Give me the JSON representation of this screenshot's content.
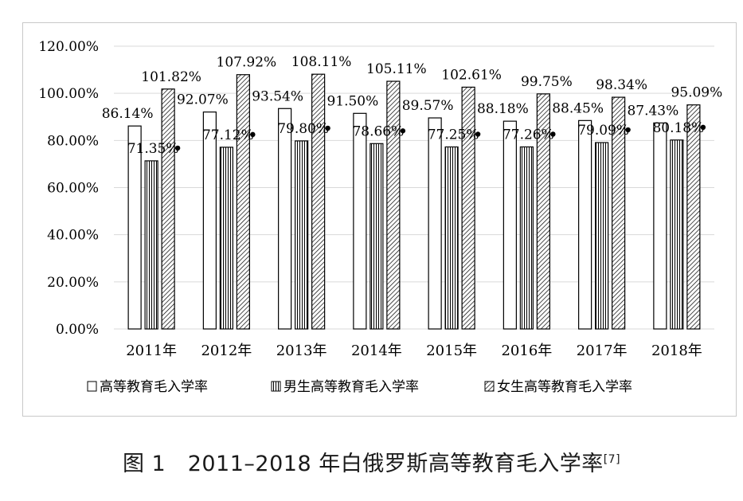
{
  "chart_data": {
    "type": "bar",
    "categories": [
      "2011年",
      "2012年",
      "2013年",
      "2014年",
      "2015年",
      "2016年",
      "2017年",
      "2018年"
    ],
    "series": [
      {
        "name": "高等教育毛入学率",
        "pattern": "blank",
        "values": [
          86.14,
          92.07,
          93.54,
          91.5,
          89.57,
          88.18,
          88.45,
          87.43
        ],
        "labels": [
          "86.14%",
          "92.07%",
          "93.54%",
          "91.50%",
          "89.57%",
          "88.18%",
          "88.45%",
          "87.43%"
        ]
      },
      {
        "name": "男生高等教育毛入学率",
        "pattern": "vertical",
        "values": [
          71.35,
          77.12,
          79.8,
          78.66,
          77.25,
          77.26,
          79.09,
          80.18
        ],
        "labels": [
          "71.35%",
          "77.12%",
          "79.80%",
          "78.66%",
          "77.25%",
          "77.26%",
          "79.09%",
          "80.18%"
        ]
      },
      {
        "name": "女生高等教育毛入学率",
        "pattern": "diagonal",
        "values": [
          101.82,
          107.92,
          108.11,
          105.11,
          102.61,
          99.75,
          98.34,
          95.09
        ],
        "labels": [
          "101.82%",
          "107.92%",
          "108.11%",
          "105.11%",
          "102.61%",
          "99.75%",
          "98.34%",
          "95.09%"
        ]
      }
    ],
    "yticks": [
      "0.00%",
      "20.00%",
      "40.00%",
      "60.00%",
      "80.00%",
      "100.00%",
      "120.00%"
    ],
    "ylim": [
      0,
      120
    ],
    "grid": true,
    "legend_position": "bottom",
    "colors": {
      "bar_stroke": "#000000",
      "grid": "#d9d9d9",
      "text": "#000000"
    }
  },
  "caption": {
    "text": "图 1　2011–2018 年白俄罗斯高等教育毛入学率",
    "ref": "[7]"
  }
}
